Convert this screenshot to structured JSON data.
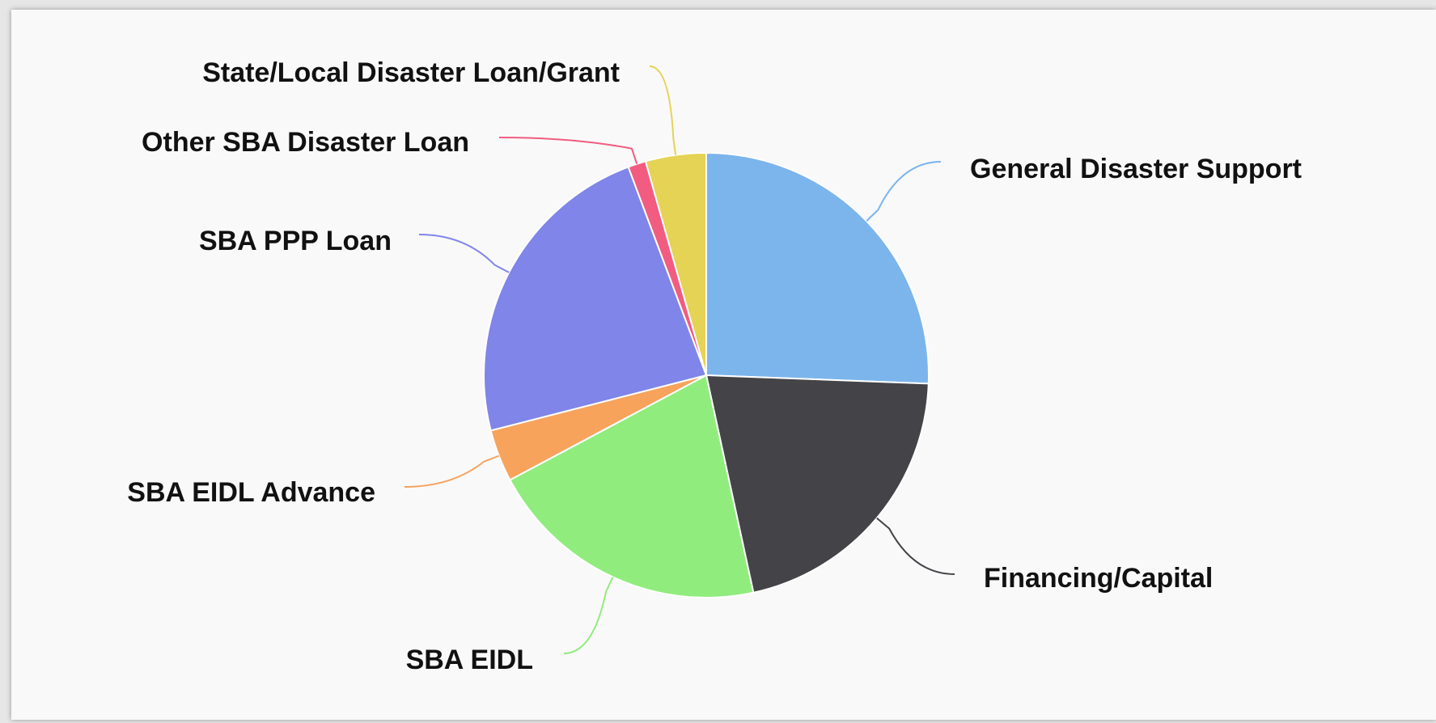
{
  "chart_data": {
    "type": "pie",
    "categories": [
      "General Disaster Support",
      "Financing/Capital",
      "SBA EIDL",
      "SBA EIDL Advance",
      "SBA PPP Loan",
      "Other SBA Disaster Loan",
      "State/Local Disaster Loan/Grant"
    ],
    "values": [
      25.6,
      21,
      20.6,
      3.8,
      23.3,
      1.3,
      4.4
    ],
    "colors": [
      "#7cb5ec",
      "#434348",
      "#90ed7d",
      "#f7a35c",
      "#8085e9",
      "#f15c80",
      "#e4d354"
    ]
  }
}
